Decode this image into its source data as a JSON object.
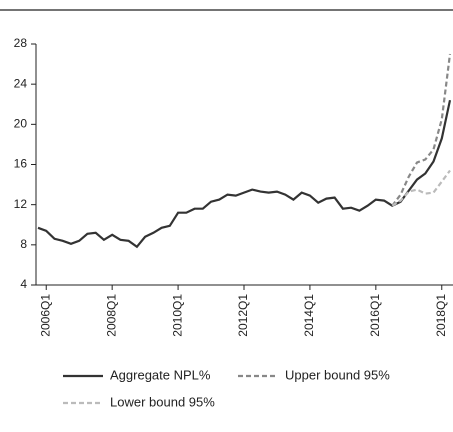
{
  "chart_data": {
    "type": "line",
    "categories": [
      null,
      "2006Q1",
      null,
      null,
      null,
      null,
      null,
      null,
      null,
      "2008Q1",
      null,
      null,
      null,
      null,
      null,
      null,
      null,
      "2010Q1",
      null,
      null,
      null,
      null,
      null,
      null,
      null,
      "2012Q1",
      null,
      null,
      null,
      null,
      null,
      null,
      null,
      "2014Q1",
      null,
      null,
      null,
      null,
      null,
      null,
      null,
      "2016Q1",
      null,
      null,
      null,
      null,
      null,
      null,
      null,
      "2018Q1",
      null
    ],
    "series": [
      {
        "name": "Aggregate NPL%",
        "color": "#333333",
        "dash": "none",
        "values": [
          9.7,
          9.4,
          8.6,
          8.4,
          8.1,
          8.4,
          9.1,
          9.2,
          8.5,
          9.0,
          8.5,
          8.4,
          7.8,
          8.8,
          9.2,
          9.7,
          9.9,
          11.2,
          11.2,
          11.6,
          11.6,
          12.3,
          12.5,
          13.0,
          12.9,
          13.2,
          13.5,
          13.3,
          13.2,
          13.3,
          13.0,
          12.5,
          13.2,
          12.9,
          12.2,
          12.6,
          12.7,
          11.6,
          11.7,
          11.4,
          11.9,
          12.5,
          12.4,
          11.9,
          12.3,
          13.4,
          14.5,
          15.1,
          16.3,
          18.6,
          22.4
        ]
      },
      {
        "name": "Upper bound 95%",
        "color": "#888888",
        "dash": "dashed",
        "values": [
          null,
          null,
          null,
          null,
          null,
          null,
          null,
          null,
          null,
          null,
          null,
          null,
          null,
          null,
          null,
          null,
          null,
          null,
          null,
          null,
          null,
          null,
          null,
          null,
          null,
          null,
          null,
          null,
          null,
          null,
          null,
          null,
          null,
          null,
          null,
          null,
          null,
          null,
          null,
          null,
          null,
          null,
          null,
          11.9,
          13.0,
          14.8,
          16.2,
          16.5,
          17.5,
          20.5,
          27.0
        ]
      },
      {
        "name": "Lower bound 95%",
        "color": "#bbbbbb",
        "dash": "dashed",
        "values": [
          null,
          null,
          null,
          null,
          null,
          null,
          null,
          null,
          null,
          null,
          null,
          null,
          null,
          null,
          null,
          null,
          null,
          null,
          null,
          null,
          null,
          null,
          null,
          null,
          null,
          null,
          null,
          null,
          null,
          null,
          null,
          null,
          null,
          null,
          null,
          null,
          null,
          null,
          null,
          null,
          null,
          null,
          null,
          11.9,
          12.4,
          13.3,
          13.5,
          13.1,
          13.2,
          14.3,
          15.4
        ]
      }
    ],
    "ylim": [
      4,
      28
    ],
    "yticks": [
      4,
      8,
      12,
      16,
      20,
      24,
      28
    ],
    "legend": "bottom"
  }
}
